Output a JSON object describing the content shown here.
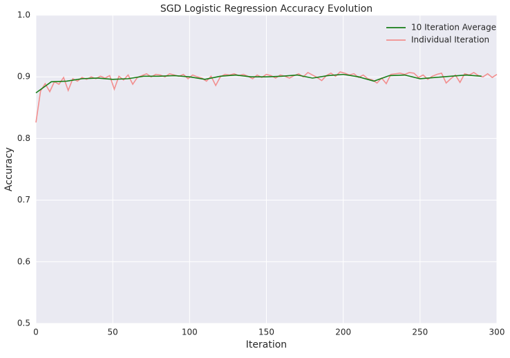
{
  "chart_data": {
    "type": "line",
    "title": "SGD Logistic Regression Accuracy Evolution",
    "x_label": "Iteration",
    "y_label": "Accuracy",
    "xlim": [
      0,
      300
    ],
    "xticks": [
      0,
      50,
      100,
      150,
      200,
      250,
      300
    ],
    "ylim": [
      0.5,
      1.0
    ],
    "yticks": [
      0.5,
      0.6,
      0.7,
      0.8,
      0.9,
      {
        "value": 1.0,
        "label": "1.0"
      }
    ],
    "grid": true,
    "legend": "upper right",
    "series": [
      {
        "name": "10 Iteration Average",
        "color": "#167d16",
        "x": [
          0,
          10,
          20,
          30,
          40,
          50,
          60,
          70,
          80,
          90,
          100,
          110,
          120,
          130,
          140,
          150,
          160,
          170,
          180,
          190,
          200,
          210,
          220,
          230,
          240,
          250,
          260,
          270,
          280,
          290
        ],
        "values": [
          0.874,
          0.892,
          0.893,
          0.897,
          0.898,
          0.896,
          0.897,
          0.901,
          0.901,
          0.902,
          0.9,
          0.896,
          0.901,
          0.903,
          0.9,
          0.9,
          0.901,
          0.903,
          0.898,
          0.902,
          0.904,
          0.9,
          0.893,
          0.902,
          0.903,
          0.897,
          0.899,
          0.901,
          0.903,
          0.901
        ]
      },
      {
        "name": "Individual Iteration",
        "color": "#f28e8e",
        "x": [
          0,
          3,
          6,
          9,
          12,
          15,
          18,
          21,
          24,
          27,
          30,
          33,
          36,
          39,
          42,
          45,
          48,
          51,
          54,
          57,
          60,
          63,
          66,
          69,
          72,
          75,
          78,
          81,
          84,
          87,
          90,
          93,
          96,
          99,
          102,
          105,
          108,
          111,
          114,
          117,
          120,
          123,
          126,
          129,
          132,
          135,
          138,
          141,
          144,
          147,
          150,
          153,
          156,
          159,
          162,
          165,
          168,
          171,
          174,
          177,
          180,
          183,
          186,
          189,
          192,
          195,
          198,
          201,
          204,
          207,
          210,
          213,
          216,
          219,
          222,
          225,
          228,
          231,
          234,
          237,
          240,
          243,
          246,
          249,
          252,
          255,
          258,
          261,
          264,
          267,
          270,
          273,
          276,
          279,
          282,
          285,
          288,
          291,
          294,
          297,
          300
        ],
        "values": [
          0.826,
          0.877,
          0.889,
          0.876,
          0.892,
          0.888,
          0.899,
          0.878,
          0.897,
          0.893,
          0.899,
          0.896,
          0.9,
          0.897,
          0.901,
          0.898,
          0.902,
          0.88,
          0.901,
          0.895,
          0.903,
          0.888,
          0.899,
          0.902,
          0.905,
          0.9,
          0.904,
          0.903,
          0.9,
          0.905,
          0.903,
          0.901,
          0.904,
          0.897,
          0.903,
          0.9,
          0.898,
          0.893,
          0.901,
          0.886,
          0.9,
          0.904,
          0.903,
          0.905,
          0.902,
          0.904,
          0.901,
          0.897,
          0.903,
          0.899,
          0.904,
          0.902,
          0.898,
          0.903,
          0.901,
          0.898,
          0.902,
          0.905,
          0.9,
          0.907,
          0.903,
          0.899,
          0.894,
          0.902,
          0.906,
          0.901,
          0.908,
          0.906,
          0.903,
          0.905,
          0.899,
          0.903,
          0.897,
          0.895,
          0.89,
          0.898,
          0.889,
          0.904,
          0.905,
          0.906,
          0.904,
          0.907,
          0.906,
          0.899,
          0.903,
          0.896,
          0.901,
          0.904,
          0.906,
          0.89,
          0.897,
          0.903,
          0.891,
          0.905,
          0.903,
          0.907,
          0.902,
          0.9,
          0.905,
          0.899,
          0.904
        ]
      }
    ]
  }
}
